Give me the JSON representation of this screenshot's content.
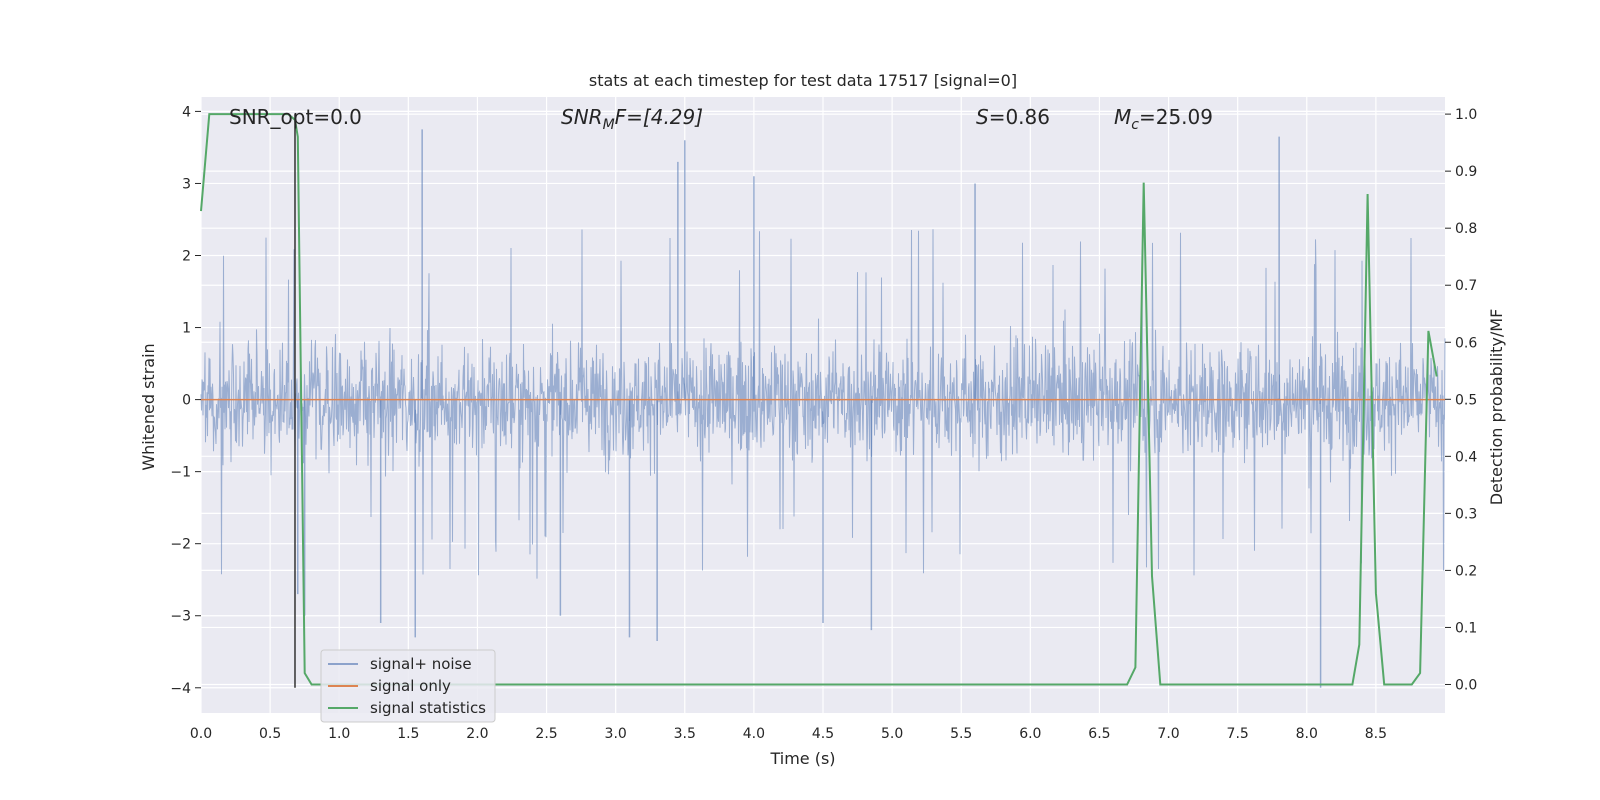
{
  "chart_data": {
    "type": "line",
    "title": "stats at each timestep for test data 17517 [signal=0]",
    "xlabel": "Time (s)",
    "ylabel_left": "Whitened strain",
    "ylabel_right": "Detection probability/MF",
    "xlim": [
      0.0,
      9.0
    ],
    "ylim_left": [
      -4.35,
      4.2
    ],
    "ylim_right": [
      -0.05,
      1.03
    ],
    "x_ticks": [
      "0.0",
      "0.5",
      "1.0",
      "1.5",
      "2.0",
      "2.5",
      "3.0",
      "3.5",
      "4.0",
      "4.5",
      "5.0",
      "5.5",
      "6.0",
      "6.5",
      "7.0",
      "7.5",
      "8.0",
      "8.5"
    ],
    "y_ticks_left": [
      "4",
      "3",
      "2",
      "1",
      "0",
      "−1",
      "−2",
      "−3",
      "−4"
    ],
    "y_ticks_right": [
      "1.0",
      "0.9",
      "0.8",
      "0.7",
      "0.6",
      "0.5",
      "0.4",
      "0.3",
      "0.2",
      "0.1",
      "0.0"
    ],
    "grid": true,
    "legend_position": "lower-left",
    "annotations": {
      "snr_opt": "SNR_opt=0.0",
      "snr_mf_main": "SNR",
      "snr_mf_sub": "M",
      "snr_mf_rest": "F=[4.29]",
      "s_label": "S",
      "s_value": "=0.86",
      "mc_label": "M",
      "mc_sub": "c",
      "mc_value": "=25.09"
    },
    "series": [
      {
        "name": "signal+ noise",
        "color": "#4c72b0",
        "axis": "left",
        "kind": "noise",
        "sample_rate_hz": 2048,
        "core_range": [
          -1.5,
          1.5
        ],
        "typical_peak_range": [
          -2.5,
          2.6
        ],
        "spikes": [
          [
            0.7,
            -2.7
          ],
          [
            0.75,
            -3.0
          ],
          [
            1.6,
            3.75
          ],
          [
            1.55,
            -3.3
          ],
          [
            1.3,
            -3.1
          ],
          [
            3.1,
            -3.3
          ],
          [
            3.3,
            -3.35
          ],
          [
            3.5,
            3.6
          ],
          [
            3.45,
            3.3
          ],
          [
            4.0,
            3.1
          ],
          [
            4.5,
            -3.1
          ],
          [
            4.85,
            -3.2
          ],
          [
            7.8,
            3.65
          ],
          [
            8.1,
            -4.0
          ],
          [
            2.6,
            -3.0
          ],
          [
            5.6,
            3.0
          ]
        ]
      },
      {
        "name": "signal only",
        "color": "#dd8452",
        "axis": "left",
        "kind": "flat",
        "value": 0.0
      },
      {
        "name": "signal statistics",
        "color": "#55a868",
        "axis": "right",
        "kind": "line",
        "x": [
          0.0,
          0.06,
          0.12,
          0.5,
          0.63,
          0.68,
          0.7,
          0.75,
          0.8,
          6.7,
          6.76,
          6.82,
          6.88,
          6.94,
          8.33,
          8.38,
          8.44,
          8.5,
          8.56,
          8.76,
          8.82,
          8.88,
          8.94
        ],
        "y": [
          0.83,
          1.0,
          1.0,
          1.0,
          1.0,
          0.99,
          0.96,
          0.02,
          0.0,
          0.0,
          0.03,
          0.88,
          0.19,
          0.0,
          0.0,
          0.07,
          0.86,
          0.16,
          0.0,
          0.0,
          0.02,
          0.62,
          0.54
        ]
      }
    ],
    "vertical_marker": {
      "x": 0.68,
      "color": "#333333"
    }
  }
}
